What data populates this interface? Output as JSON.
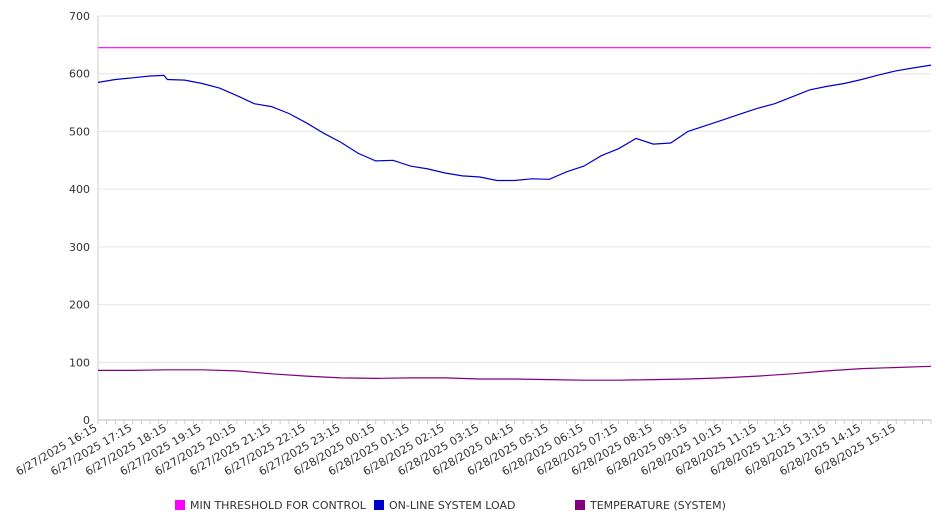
{
  "chart_data": {
    "type": "line",
    "ylim": [
      0,
      700
    ],
    "y_ticks": [
      0,
      100,
      200,
      300,
      400,
      500,
      600,
      700
    ],
    "x_tick_labels": [
      "6/27/2025 16:15",
      "6/27/2025 17:15",
      "6/27/2025 18:15",
      "6/27/2025 19:15",
      "6/27/2025 20:15",
      "6/27/2025 21:15",
      "6/27/2025 22:15",
      "6/27/2025 23:15",
      "6/28/2025 00:15",
      "6/28/2025 01:15",
      "6/28/2025 02:15",
      "6/28/2025 03:15",
      "6/28/2025 04:15",
      "6/28/2025 05:15",
      "6/28/2025 06:15",
      "6/28/2025 07:15",
      "6/28/2025 08:15",
      "6/28/2025 09:15",
      "6/28/2025 10:15",
      "6/28/2025 11:15",
      "6/28/2025 12:15",
      "6/28/2025 13:15",
      "6/28/2025 14:15",
      "6/28/2025 15:15"
    ],
    "x_range_hours": [
      0,
      24
    ],
    "grid": "horizontal",
    "legend_position": "bottom",
    "series": [
      {
        "name": "MIN THRESHOLD FOR CONTROL",
        "color": "#ff00ff",
        "x": [
          0,
          24
        ],
        "values": [
          645,
          645
        ]
      },
      {
        "name": "ON-LINE SYSTEM LOAD",
        "color": "#0000cc",
        "x": [
          0,
          0.5,
          1,
          1.5,
          1.9,
          2,
          2.5,
          3,
          3.5,
          4,
          4.5,
          5,
          5.5,
          6,
          6.5,
          7,
          7.5,
          8,
          8.5,
          9,
          9.5,
          10,
          10.5,
          11,
          11.5,
          12,
          12.5,
          13,
          13.5,
          14,
          14.5,
          15,
          15.5,
          16,
          16.5,
          17,
          17.5,
          18,
          18.5,
          19,
          19.5,
          20,
          20.5,
          21,
          21.5,
          22,
          22.5,
          23,
          23.5,
          24
        ],
        "values": [
          585,
          590,
          593,
          596,
          597,
          590,
          589,
          583,
          575,
          562,
          548,
          543,
          531,
          515,
          497,
          481,
          462,
          449,
          450,
          440,
          435,
          428,
          423,
          421,
          415,
          415,
          418,
          417,
          430,
          440,
          458,
          470,
          488,
          478,
          480,
          500,
          510,
          520,
          530,
          540,
          548,
          560,
          572,
          578,
          583,
          590,
          598,
          605,
          610,
          615
        ]
      },
      {
        "name": "TEMPERATURE (SYSTEM)",
        "color": "#800080",
        "x": [
          0,
          1,
          2,
          3,
          4,
          5,
          6,
          7,
          8,
          9,
          10,
          11,
          12,
          13,
          14,
          15,
          16,
          17,
          18,
          19,
          20,
          21,
          22,
          23,
          24
        ],
        "values": [
          86,
          86,
          87,
          87,
          85,
          80,
          76,
          73,
          72,
          73,
          73,
          71,
          71,
          70,
          69,
          69,
          70,
          71,
          73,
          76,
          80,
          85,
          89,
          91,
          93
        ]
      }
    ]
  }
}
